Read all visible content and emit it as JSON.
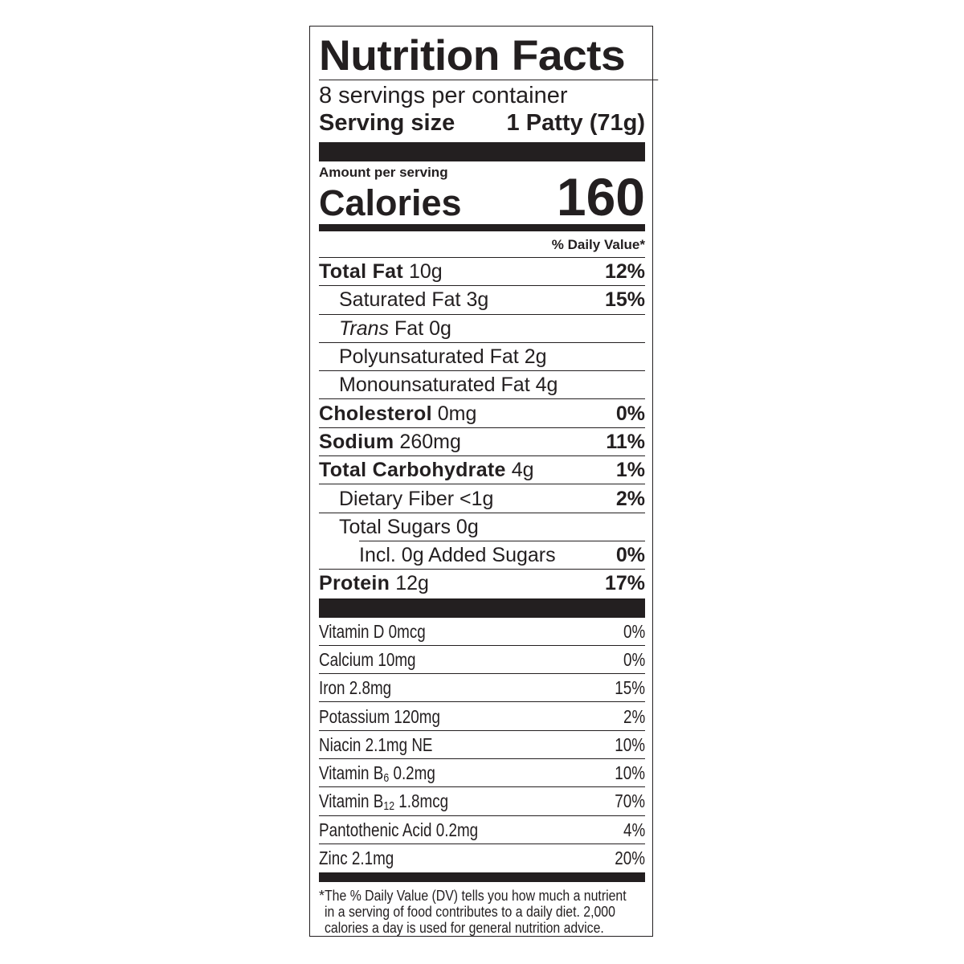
{
  "title": "Nutrition Facts",
  "servings": "8 servings per container",
  "serving_size": {
    "label": "Serving size",
    "value": "1 Patty (71g)"
  },
  "amount_per_serving": "Amount per serving",
  "calories": {
    "label": "Calories",
    "value": "160"
  },
  "daily_value_header": "% Daily Value*",
  "nutrients": [
    {
      "name": "Total Fat",
      "amount": "10g",
      "dv": "12%"
    },
    {
      "name": "Saturated Fat",
      "amount": "3g",
      "dv": "15%"
    },
    {
      "name_italic": "Trans",
      "name": "Fat",
      "amount": "0g"
    },
    {
      "name": "Polyunsaturated Fat",
      "amount": "2g"
    },
    {
      "name": "Monounsaturated Fat",
      "amount": "4g"
    },
    {
      "name": "Cholesterol",
      "amount": "0mg",
      "dv": "0%"
    },
    {
      "name": "Sodium",
      "amount": "260mg",
      "dv": "11%"
    },
    {
      "name": "Total Carbohydrate",
      "amount": "4g",
      "dv": "1%"
    },
    {
      "name": "Dietary Fiber",
      "amount": "<1g",
      "dv": "2%"
    },
    {
      "name": "Total Sugars",
      "amount": "0g"
    },
    {
      "name": "Incl. 0g Added Sugars",
      "dv": "0%"
    },
    {
      "name": "Protein",
      "amount": "12g",
      "dv": "17%"
    }
  ],
  "vitamins": [
    {
      "name": "Vitamin D",
      "amount": "0mcg",
      "dv": "0%"
    },
    {
      "name": "Calcium",
      "amount": "10mg",
      "dv": "0%"
    },
    {
      "name": "Iron",
      "amount": "2.8mg",
      "dv": "15%"
    },
    {
      "name": "Potassium",
      "amount": "120mg",
      "dv": "2%"
    },
    {
      "name": "Niacin",
      "amount": "2.1mg NE",
      "dv": "10%"
    },
    {
      "name": "Vitamin B",
      "sub": "6",
      "amount": "0.2mg",
      "dv": "10%"
    },
    {
      "name": "Vitamin B",
      "sub": "12",
      "amount": "1.8mcg",
      "dv": "70%"
    },
    {
      "name": "Pantothenic Acid",
      "amount": "0.2mg",
      "dv": "4%"
    },
    {
      "name": "Zinc",
      "amount": "2.1mg",
      "dv": "20%"
    }
  ],
  "footnote": {
    "marker": "*",
    "lines": [
      "The % Daily Value (DV) tells you how much a nutrient",
      "in a serving of food contributes to a daily diet. 2,000",
      "calories a day is used for general nutrition advice."
    ]
  }
}
